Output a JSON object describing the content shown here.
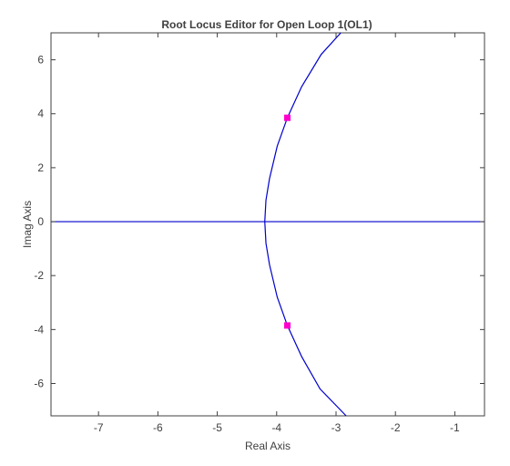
{
  "chart_data": {
    "type": "line",
    "title": "Root Locus Editor for Open Loop 1(OL1)",
    "xlabel": "Real Axis",
    "ylabel": "Imag Axis",
    "xlim": [
      -7.8,
      -0.5
    ],
    "ylim": [
      -7.2,
      7.0
    ],
    "xticks": [
      -7,
      -6,
      -5,
      -4,
      -3,
      -2,
      -1
    ],
    "xtick_labels": [
      "-7",
      "-6",
      "-5",
      "-4",
      "-3",
      "-2",
      "-1"
    ],
    "yticks": [
      -6,
      -4,
      -2,
      0,
      2,
      4,
      6
    ],
    "ytick_labels": [
      "-6",
      "-4",
      "-2",
      "0",
      "2",
      "4",
      "6"
    ],
    "grid": false,
    "colors": {
      "locus": "#0000cc",
      "closed_loop_poles": "#ff00cc",
      "axes": "#404040"
    },
    "series": [
      {
        "x": [
          -7.8,
          -0.5
        ],
        "y": [
          0,
          0
        ]
      },
      {
        "x": [
          -4.2,
          -4.18,
          -4.12,
          -3.99,
          -3.82,
          -3.58,
          -3.25,
          -2.92
        ],
        "y": [
          0,
          0.8,
          1.6,
          2.8,
          3.85,
          5.0,
          6.2,
          7.0
        ]
      },
      {
        "x": [
          -4.2,
          -4.18,
          -4.12,
          -3.99,
          -3.82,
          -3.58,
          -3.27,
          -2.83
        ],
        "y": [
          0,
          -0.8,
          -1.6,
          -2.8,
          -3.85,
          -5.0,
          -6.2,
          -7.2
        ]
      }
    ],
    "markers": [
      {
        "x": -3.82,
        "y": 3.85
      },
      {
        "x": -3.82,
        "y": -3.85
      }
    ]
  }
}
